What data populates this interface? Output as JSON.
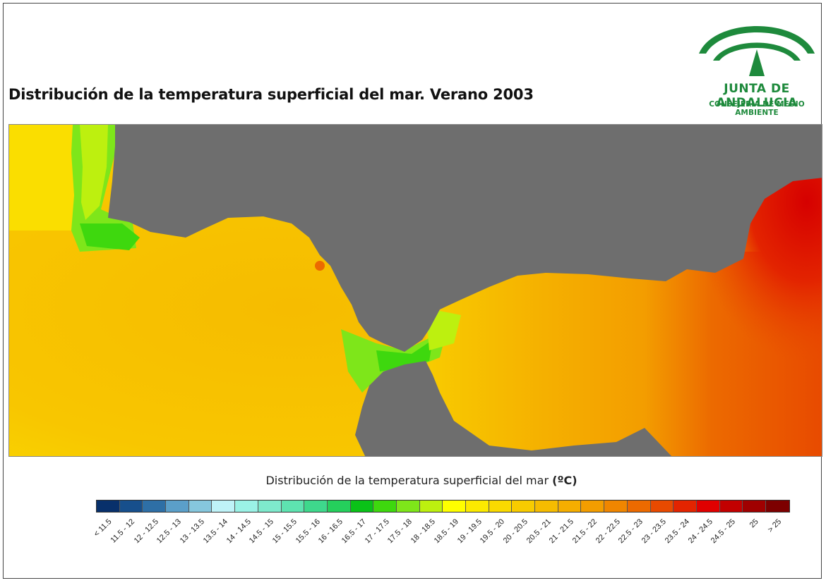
{
  "title": "Distribución de la temperatura superficial del mar. Verano 2003",
  "logo": {
    "name": "JUNTA DE ANDALUCIA",
    "department": "CONSEJERÍA DE MEDIO AMBIENTE"
  },
  "legend": {
    "title": "Distribución de la temperatura superficial del mar",
    "unit": "(ºC)",
    "classes": [
      {
        "label": "< 11.5",
        "color": "#08306b"
      },
      {
        "label": "11.5 - 12",
        "color": "#174f8c"
      },
      {
        "label": "12 - 12.5",
        "color": "#2e6fa6"
      },
      {
        "label": "12.5 - 13",
        "color": "#5b9fc9"
      },
      {
        "label": "13 - 13.5",
        "color": "#86c7dd"
      },
      {
        "label": "13.5 - 14",
        "color": "#bff3f8"
      },
      {
        "label": "14 - 14.5",
        "color": "#9bf2e6"
      },
      {
        "label": "14.5 - 15",
        "color": "#7ee9cc"
      },
      {
        "label": "15 - 15.5",
        "color": "#5ee3b0"
      },
      {
        "label": "15.5 - 16",
        "color": "#3ed88c"
      },
      {
        "label": "16 - 16.5",
        "color": "#25cf5c"
      },
      {
        "label": "16.5 - 17",
        "color": "#0ac218"
      },
      {
        "label": "17 - 17.5",
        "color": "#3ed80e"
      },
      {
        "label": "17.5 - 18",
        "color": "#7ee61a"
      },
      {
        "label": "18 - 18.5",
        "color": "#bdf00f"
      },
      {
        "label": "18.5 - 19",
        "color": "#ffff00"
      },
      {
        "label": "19 - 19.5",
        "color": "#fcea00"
      },
      {
        "label": "19.5 - 20",
        "color": "#fada00"
      },
      {
        "label": "20 - 20.5",
        "color": "#f8cb00"
      },
      {
        "label": "20.5 - 21",
        "color": "#f6bc00"
      },
      {
        "label": "21 - 21.5",
        "color": "#f5ae00"
      },
      {
        "label": "21.5 - 22",
        "color": "#f39d00"
      },
      {
        "label": "22 - 22.5",
        "color": "#f08600"
      },
      {
        "label": "22.5 - 23",
        "color": "#ec6a00"
      },
      {
        "label": "23 - 23.5",
        "color": "#e84a00"
      },
      {
        "label": "23.5 - 24",
        "color": "#e32400"
      },
      {
        "label": "24 - 24.5",
        "color": "#e00000"
      },
      {
        "label": "24.5 - 25",
        "color": "#c20000"
      },
      {
        "label": "25",
        "color": "#a00000"
      },
      {
        "label": "> 25",
        "color": "#7d0000"
      }
    ]
  },
  "map": {
    "land_color": "#6e6e6e"
  }
}
